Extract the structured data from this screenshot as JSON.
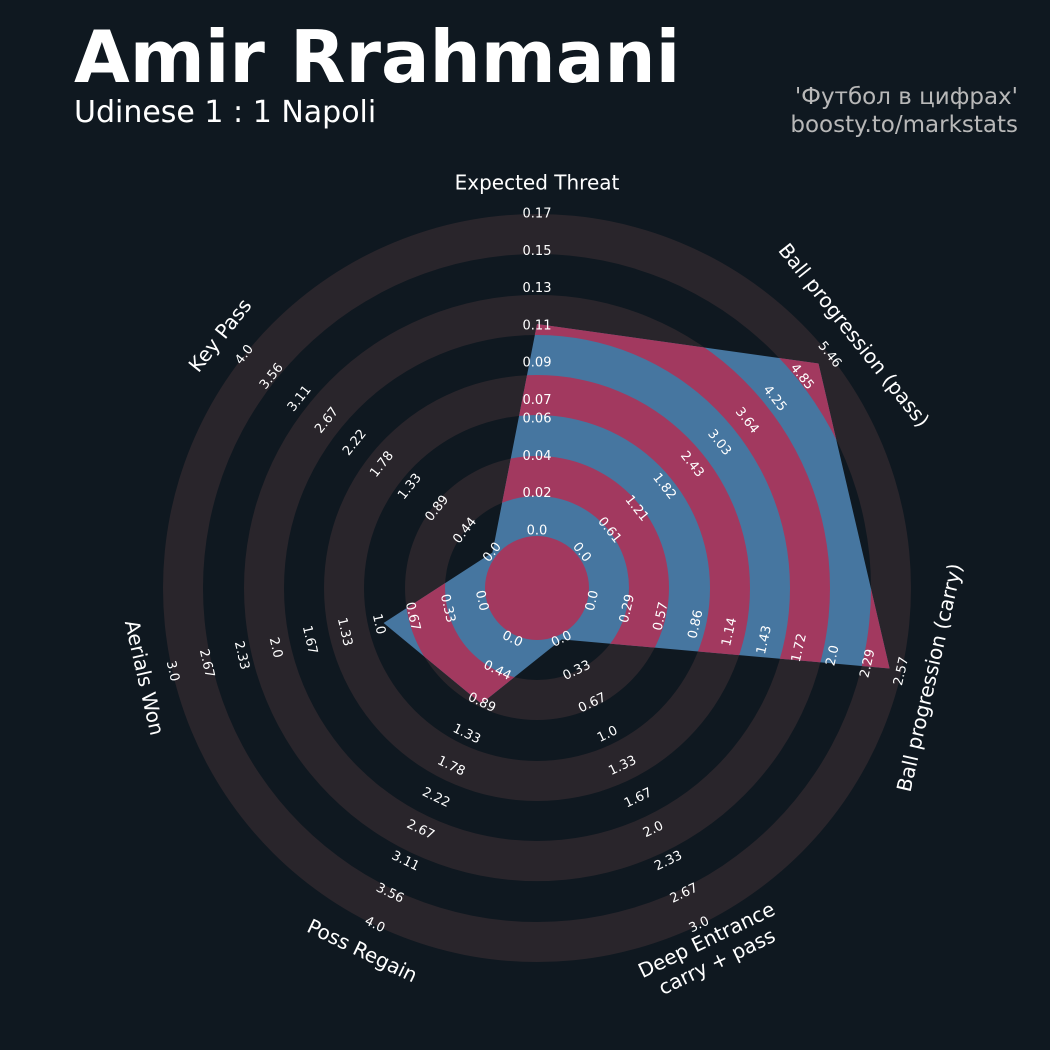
{
  "chart_data": {
    "type": "radar",
    "title": "Amir Rrahmani",
    "subtitle": "Udinese 1 : 1 Napoli",
    "credits": [
      "'Футбол в цифрах'",
      "boosty.to/markstats"
    ],
    "categories": [
      "Expected Threat",
      "Ball progression (pass)",
      "Ball progression (carry)",
      [
        "Deep Entrance",
        "carry + pass"
      ],
      "Poss Regain",
      "Aerials Won",
      "Key Pass"
    ],
    "values": [
      0.111,
      5.22,
      2.47,
      0,
      0.9,
      0.95,
      0
    ],
    "color": "#4676a0",
    "ring_color": "#29252b",
    "overlap_color": "#a2395f",
    "background": "#0f1820",
    "axes": [
      {
        "lim": [
          0,
          0.17
        ],
        "ticks": [
          {
            "value": 0,
            "label": "0.0"
          },
          0.02,
          0.04,
          0.06,
          0.07,
          0.09,
          0.11,
          0.13,
          0.15,
          0.17
        ]
      },
      {
        "lim": [
          0,
          5.46
        ],
        "ticks": [
          {
            "value": 0,
            "label": "0.0"
          },
          0.61,
          1.21,
          1.82,
          2.43,
          3.03,
          3.64,
          4.25,
          4.85,
          5.46
        ]
      },
      {
        "lim": [
          0,
          2.57
        ],
        "ticks": [
          {
            "value": 0,
            "label": "0.0"
          },
          0.29,
          0.57,
          0.86,
          1.14,
          1.43,
          1.72,
          {
            "value": 2,
            "label": "2.0"
          },
          2.29,
          2.57
        ]
      },
      {
        "lim": [
          0,
          3
        ],
        "ticks": [
          {
            "value": 0,
            "label": "0.0"
          },
          0.33,
          0.67,
          {
            "value": 1,
            "label": "1.0"
          },
          1.33,
          1.67,
          {
            "value": 2,
            "label": "2.0"
          },
          2.33,
          2.67,
          {
            "value": 3,
            "label": "3.0"
          }
        ]
      },
      {
        "lim": [
          0,
          4
        ],
        "ticks": [
          {
            "value": 0,
            "label": "0.0"
          },
          0.44,
          0.89,
          1.33,
          1.78,
          2.22,
          2.67,
          3.11,
          3.56,
          {
            "value": 4,
            "label": "4.0"
          }
        ]
      },
      {
        "lim": [
          0,
          3
        ],
        "ticks": [
          {
            "value": 0,
            "label": "0.0"
          },
          0.33,
          0.67,
          {
            "value": 1,
            "label": "1.0"
          },
          1.33,
          1.67,
          {
            "value": 2,
            "label": "2.0"
          },
          2.33,
          2.67,
          {
            "value": 3,
            "label": "3.0"
          }
        ]
      },
      {
        "lim": [
          0,
          4
        ],
        "ticks": [
          {
            "value": 0,
            "label": "0.0"
          },
          0.44,
          0.89,
          1.33,
          1.78,
          2.22,
          2.67,
          3.11,
          3.56,
          {
            "value": 4,
            "label": "4.0"
          }
        ]
      }
    ]
  }
}
